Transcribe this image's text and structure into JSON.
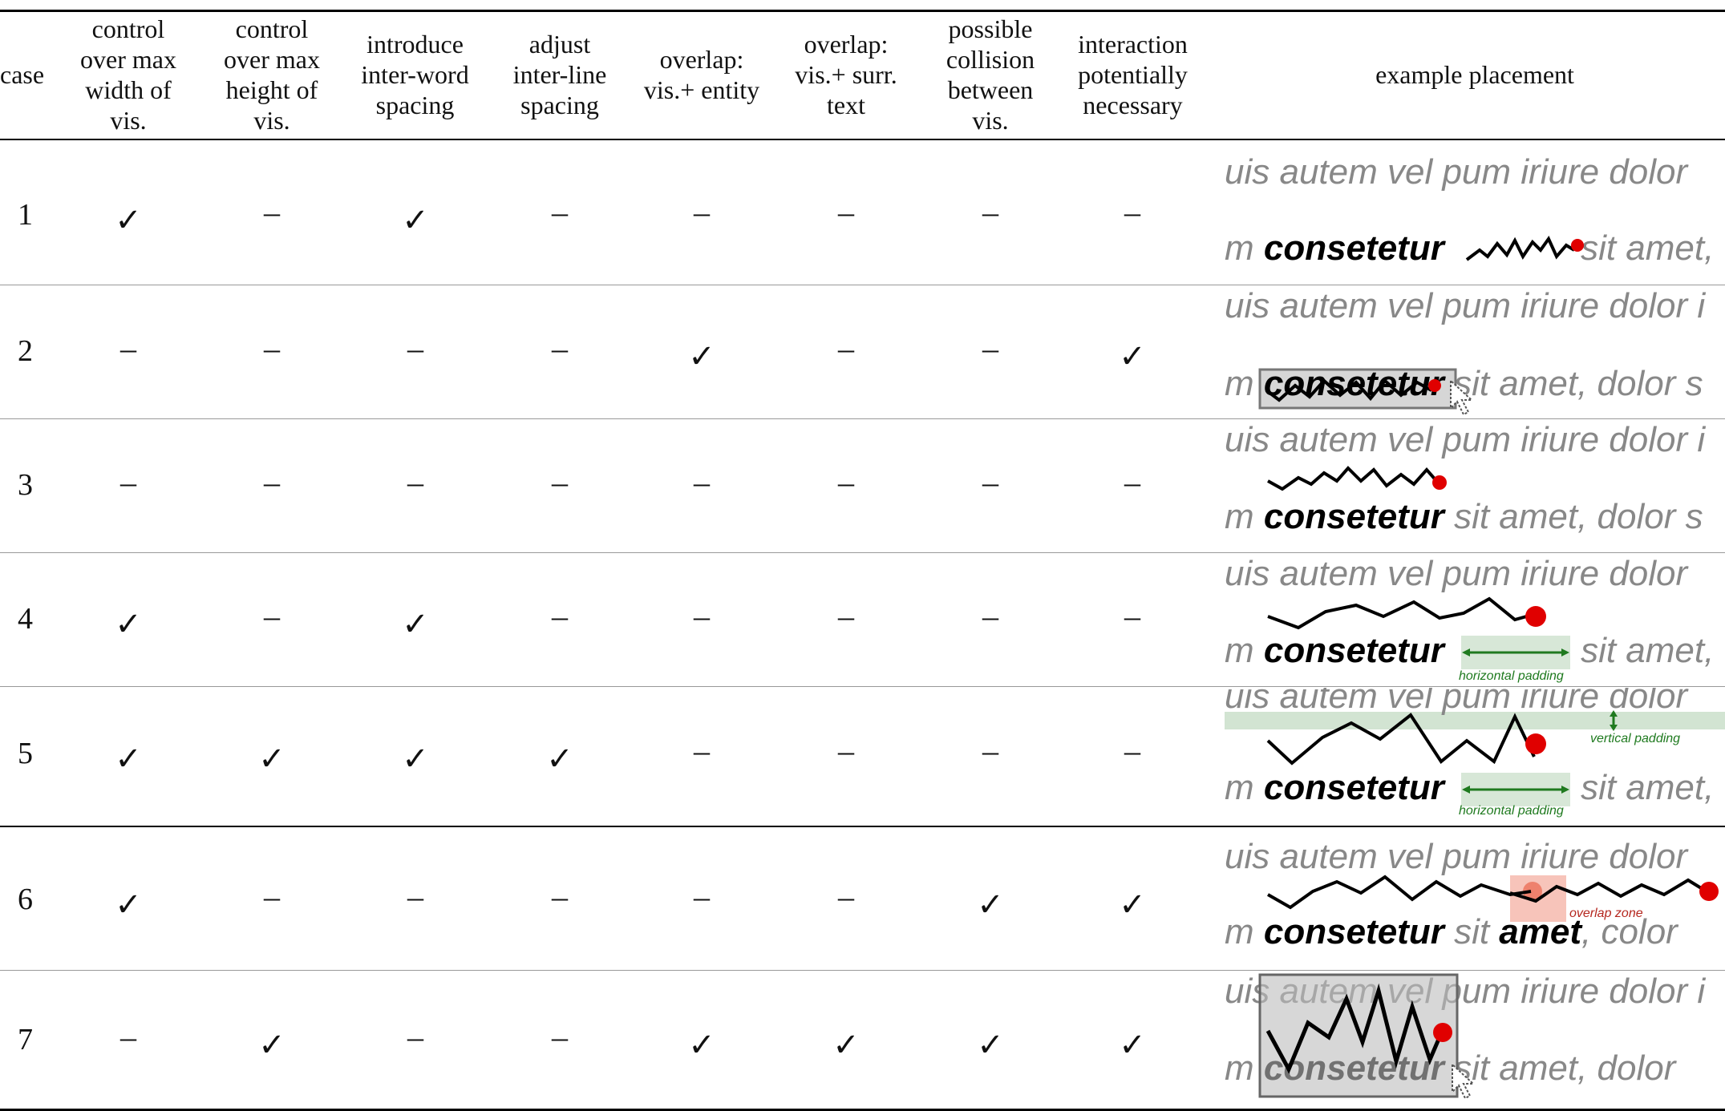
{
  "headers": {
    "case": "case",
    "h1": [
      "control",
      "over max",
      "width of",
      "vis."
    ],
    "h2": [
      "control",
      "over max",
      "height of",
      "vis."
    ],
    "h3": [
      "introduce",
      "inter-word",
      "spacing"
    ],
    "h4": [
      "adjust",
      "inter-line",
      "spacing"
    ],
    "h5": [
      "overlap:",
      "vis.+ entity"
    ],
    "h6": [
      "overlap:",
      "vis.+ surr.",
      "text"
    ],
    "h7": [
      "possible",
      "collision",
      "between",
      "vis."
    ],
    "h8": [
      "interaction",
      "potentially",
      "necessary"
    ],
    "example": "example placement"
  },
  "symbols": {
    "check": "✓",
    "dash": "–"
  },
  "rows": [
    {
      "case": "1",
      "marks": [
        "✓",
        "–",
        "✓",
        "–",
        "–",
        "–",
        "–",
        "–"
      ],
      "line1": "uis autem vel pum iriure dolor",
      "pre": "m ",
      "word": "consetetur",
      "post": " sit amet,"
    },
    {
      "case": "2",
      "marks": [
        "–",
        "–",
        "–",
        "–",
        "✓",
        "–",
        "–",
        "✓"
      ],
      "line1": "uis autem vel pum iriure dolor i",
      "pre": "m ",
      "word": "consetetur",
      "post": " sit amet, dolor s"
    },
    {
      "case": "3",
      "marks": [
        "–",
        "–",
        "–",
        "–",
        "–",
        "–",
        "–",
        "–"
      ],
      "line1": "uis autem vel pum iriure dolor i",
      "pre": "m ",
      "word": "consetetur",
      "post": " sit amet, dolor s"
    },
    {
      "case": "4",
      "marks": [
        "✓",
        "–",
        "✓",
        "–",
        "–",
        "–",
        "–",
        "–"
      ],
      "line1": "uis autem vel pum iriure dolor",
      "pre": "m ",
      "word": "consetetur",
      "post": " sit amet,",
      "note": "horizontal padding"
    },
    {
      "case": "5",
      "marks": [
        "✓",
        "✓",
        "✓",
        "✓",
        "–",
        "–",
        "–",
        "–"
      ],
      "line1": "uis autem vel pum iriure dolor",
      "pre": "m ",
      "word": "consetetur",
      "post": " sit amet,",
      "note": "horizontal padding",
      "note2": "vertical padding"
    },
    {
      "case": "6",
      "marks": [
        "✓",
        "–",
        "–",
        "–",
        "–",
        "–",
        "✓",
        "✓"
      ],
      "line1": "uis autem vel pum iriure dolor",
      "pre": "m ",
      "word": "consetetur",
      "mid": " sit ",
      "word2": "amet",
      "post": ", color",
      "note": "overlap zone"
    },
    {
      "case": "7",
      "marks": [
        "–",
        "✓",
        "–",
        "–",
        "✓",
        "✓",
        "✓",
        "✓"
      ],
      "line1": "uis autem vel pum iriure dolor i",
      "pre": "m ",
      "word": "consetetur",
      "post": " sit amet, dolor"
    }
  ],
  "colors": {
    "dot": "#e00000",
    "padding": "#1f7a1f",
    "overlap": "#e8553a",
    "gray_text": "#888888"
  }
}
